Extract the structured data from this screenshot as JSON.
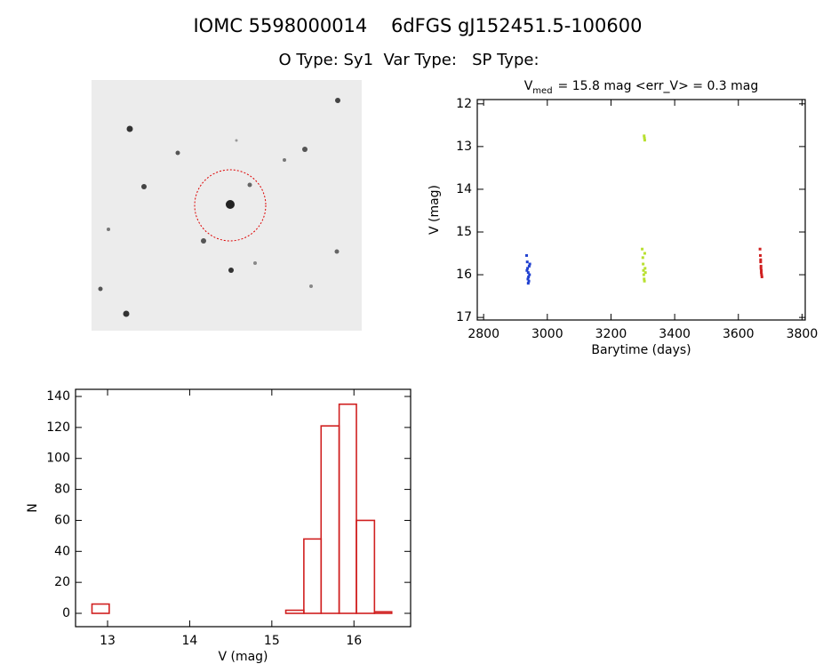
{
  "title": "IOMC 5598000014    6dFGS gJ152451.5-100600",
  "subtitle": "O Type: Sy1  Var Type:   SP Type:",
  "chart_data": [
    {
      "type": "scatter",
      "title": {
        "base": "V",
        "sub": "med",
        "rest": "= 15.8 mag <err_V> = 0.3 mag"
      },
      "xlabel": "Barytime (days)",
      "ylabel": "V (mag)",
      "xlim": [
        2780,
        3810
      ],
      "ylim": [
        17.06,
        11.9
      ],
      "xticks": [
        2800,
        3000,
        3200,
        3400,
        3600,
        3800
      ],
      "yticks": [
        12,
        13,
        14,
        15,
        16,
        17
      ],
      "series": [
        {
          "color": "#2040d0",
          "x": [
            2935,
            2937,
            2938,
            2940,
            2941,
            2942,
            2943,
            2944,
            2936,
            2939,
            2945,
            2940
          ],
          "values": [
            15.55,
            15.7,
            15.85,
            15.95,
            16.05,
            16.15,
            15.8,
            16.0,
            15.9,
            16.1,
            15.75,
            16.2
          ]
        },
        {
          "color": "#b8e030",
          "x": [
            3298,
            3300,
            3301,
            3302,
            3303,
            3304,
            3305,
            3306,
            3307,
            3308,
            3305,
            3306,
            3304
          ],
          "values": [
            15.4,
            15.6,
            15.75,
            15.9,
            16.0,
            16.1,
            16.15,
            15.5,
            15.85,
            15.95,
            12.8,
            12.85,
            12.75
          ]
        },
        {
          "color": "#d02020",
          "x": [
            3668,
            3669,
            3670,
            3671,
            3672,
            3673,
            3674,
            3670,
            3671,
            3672
          ],
          "values": [
            15.4,
            15.55,
            15.7,
            15.8,
            15.9,
            16.0,
            16.05,
            15.65,
            15.85,
            15.95
          ]
        }
      ]
    },
    {
      "type": "histogram",
      "xlabel": "V (mag)",
      "ylabel": "N",
      "xlim": [
        12.61,
        16.69
      ],
      "ylim": [
        -8.6,
        144.6
      ],
      "xticks": [
        13,
        14,
        15,
        16
      ],
      "yticks": [
        0,
        20,
        40,
        60,
        80,
        100,
        120,
        140
      ],
      "color": "#d02020",
      "bins": [
        12.81,
        13.02,
        13.24,
        13.45,
        13.67,
        13.88,
        14.1,
        14.31,
        14.53,
        14.74,
        14.96,
        15.17,
        15.39,
        15.6,
        15.82,
        16.03,
        16.25,
        16.46
      ],
      "values": [
        6,
        0,
        0,
        0,
        0,
        0,
        0,
        0,
        0,
        0,
        0,
        2,
        48,
        121,
        135,
        60,
        1
      ]
    }
  ]
}
